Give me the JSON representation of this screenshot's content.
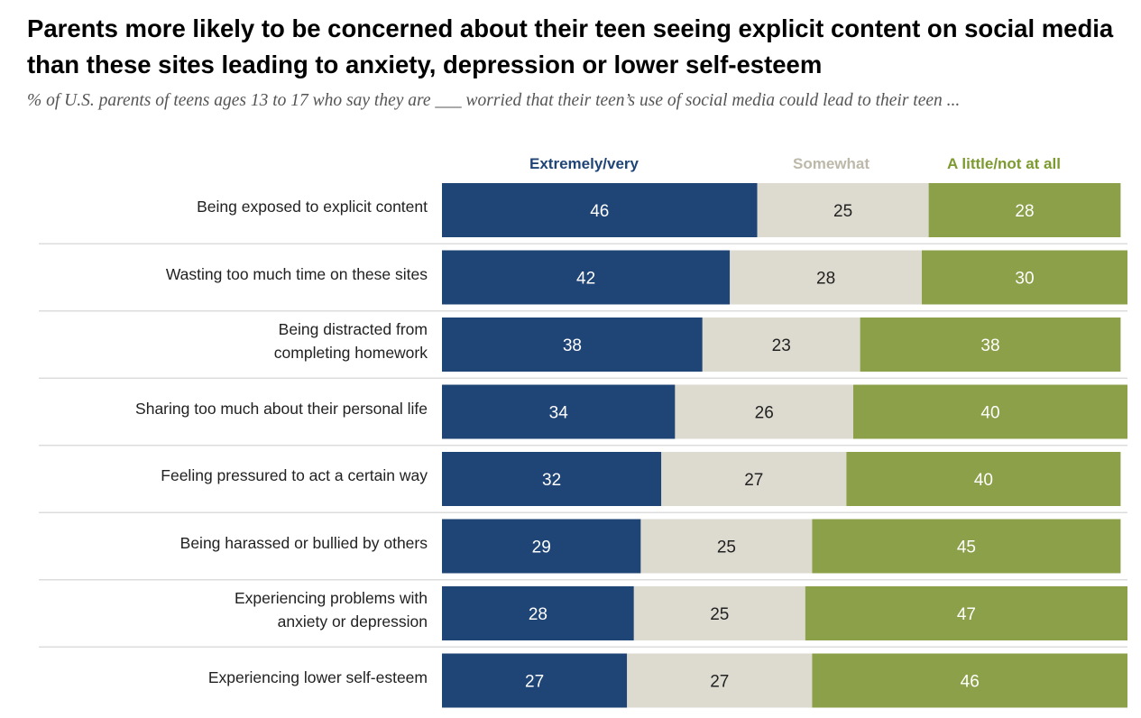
{
  "colors": {
    "extremely": "#1f4476",
    "somewhat": "#dddad0",
    "little": "#8ba048",
    "legend_somewhat": "#bcb8aa",
    "legend_little": "#7d9a30",
    "separator": "#dcdcdc"
  },
  "chart_data": {
    "type": "bar",
    "orientation": "horizontal",
    "stacked": true,
    "title": "Parents more likely to be concerned about their teen seeing explicit content on social media than these sites leading to anxiety, depression or lower self-esteem",
    "subtitle": "% of U.S. parents of teens ages 13 to 17 who say they are ___ worried that their teen’s use of social media could lead to their teen ...",
    "categories": [
      "Being exposed to explicit content",
      "Wasting too much time on these sites",
      "Being distracted from completing homework",
      "Sharing too much about their personal life",
      "Feeling pressured to act a certain way",
      "Being harassed or bullied by others",
      "Experiencing problems with anxiety or depression",
      "Experiencing lower self-esteem"
    ],
    "category_lines": [
      [
        "Being exposed to explicit content"
      ],
      [
        "Wasting too much time on these sites"
      ],
      [
        "Being distracted from",
        "completing homework"
      ],
      [
        "Sharing too much about their personal life"
      ],
      [
        "Feeling pressured to act a certain way"
      ],
      [
        "Being harassed or bullied by others"
      ],
      [
        "Experiencing problems with",
        "anxiety or depression"
      ],
      [
        "Experiencing lower self-esteem"
      ]
    ],
    "series": [
      {
        "name": "Extremely/very",
        "values": [
          46,
          42,
          38,
          34,
          32,
          29,
          28,
          27
        ]
      },
      {
        "name": "Somewhat",
        "values": [
          25,
          28,
          23,
          26,
          27,
          25,
          25,
          27
        ]
      },
      {
        "name": "A little/not at all",
        "values": [
          28,
          30,
          38,
          40,
          40,
          45,
          47,
          46
        ]
      }
    ],
    "xlim": [
      0,
      100
    ],
    "legend_position": "top"
  }
}
